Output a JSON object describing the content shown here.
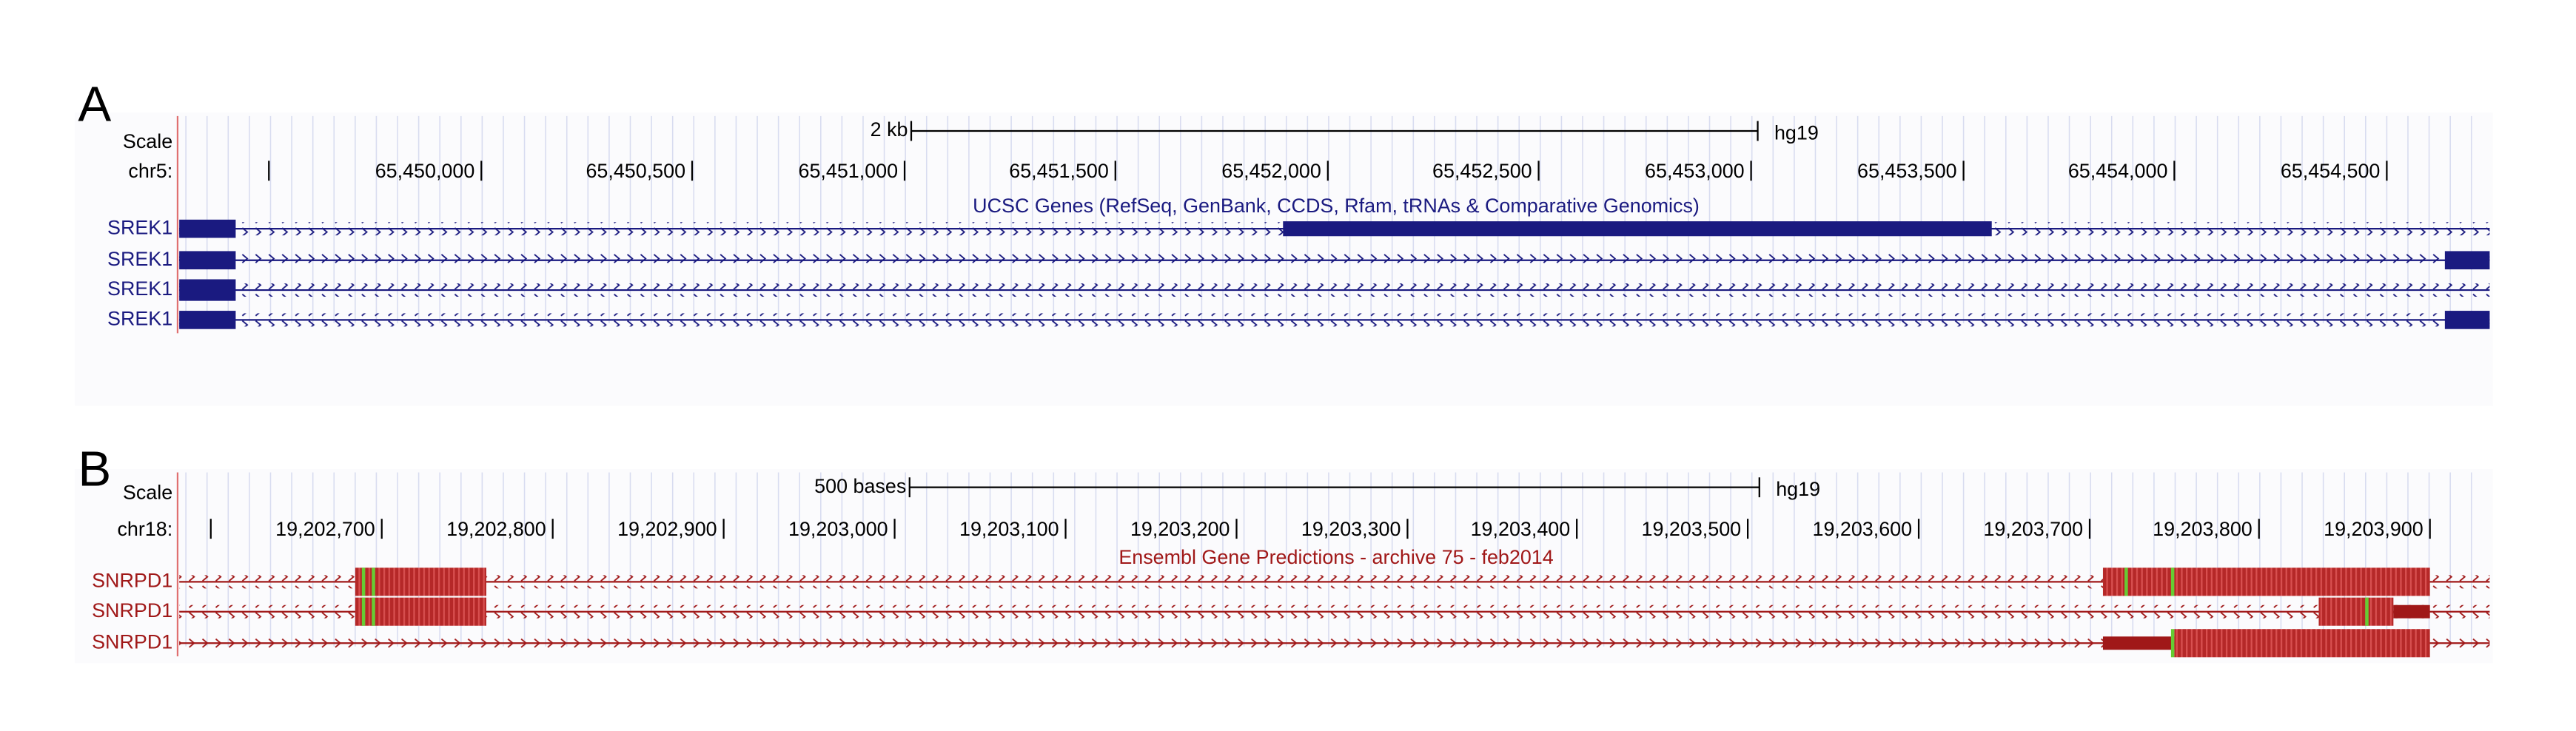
{
  "panels": [
    {
      "label": "A",
      "scale_label": "Scale",
      "chrom_label": "chr5:",
      "scale_bar": "2 kb",
      "assembly": "hg19",
      "positions": [
        "65,450,000",
        "65,450,500",
        "65,451,000",
        "65,451,500",
        "65,452,000",
        "65,452,500",
        "65,453,000",
        "65,453,500",
        "65,454,000",
        "65,454,500"
      ],
      "track_title": "UCSC Genes (RefSeq, GenBank, CCDS, Rfam, tRNAs & Comparative Genomics)",
      "genes": [
        "SREK1",
        "SREK1",
        "SREK1",
        "SREK1"
      ]
    },
    {
      "label": "B",
      "scale_label": "Scale",
      "chrom_label": "chr18:",
      "scale_bar": "500 bases",
      "assembly": "hg19",
      "positions": [
        "19,202,700",
        "19,202,800",
        "19,202,900",
        "19,203,000",
        "19,203,100",
        "19,203,200",
        "19,203,300",
        "19,203,400",
        "19,203,500",
        "19,203,600",
        "19,203,700",
        "19,203,800",
        "19,203,900"
      ],
      "track_title": "Ensembl Gene Predictions - archive 75 - feb2014",
      "genes": [
        "SNRPD1",
        "SNRPD1",
        "SNRPD1"
      ]
    }
  ]
}
